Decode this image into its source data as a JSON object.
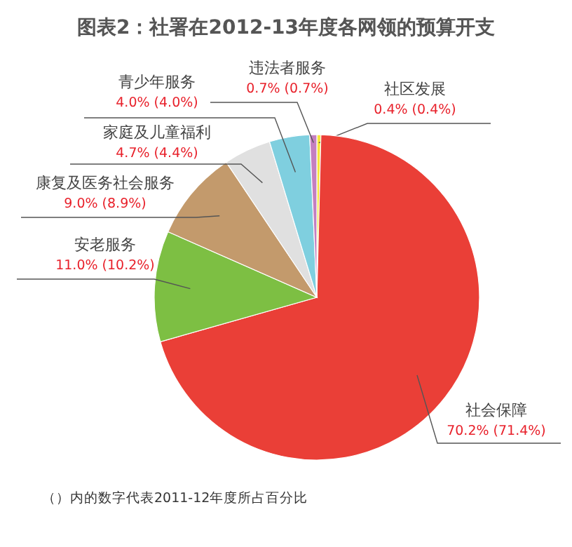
{
  "chart_data": {
    "type": "pie",
    "title": "图表2：社署在2012-13年度各网领的预算开支",
    "categories": [
      "社区发展",
      "社会保障",
      "安老服务",
      "康复及医务社会服务",
      "家庭及儿童福利",
      "青少年服务",
      "违法者服务"
    ],
    "values": [
      0.4,
      70.2,
      11.0,
      9.0,
      4.7,
      4.0,
      0.7
    ],
    "colors": [
      "#f5e63c",
      "#ea3f37",
      "#7dbf43",
      "#c39a6c",
      "#e0e0e0",
      "#7fcfdf",
      "#c47fc0"
    ],
    "value_labels": [
      "0.4% (0.4%)",
      "70.2% (71.4%)",
      "11.0% (10.2%)",
      "9.0% (8.9%)",
      "4.7% (4.4%)",
      "4.0% (4.0%)",
      "0.7% (0.7%)"
    ],
    "annotations": [
      "（）内的数字代表2011-12年度所占百分比"
    ]
  }
}
